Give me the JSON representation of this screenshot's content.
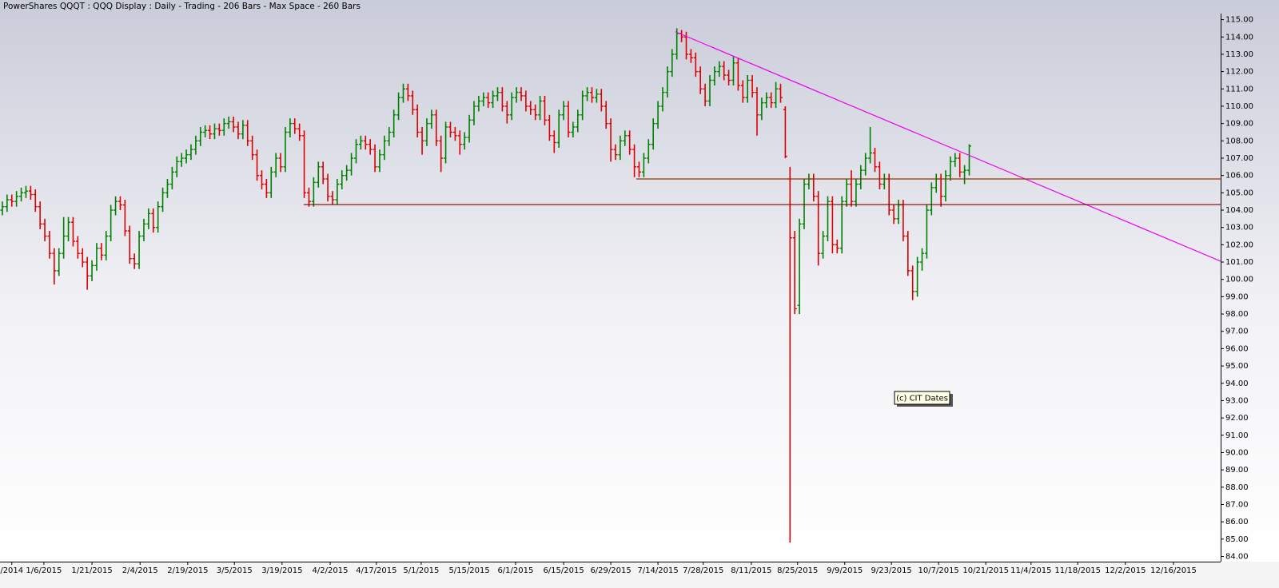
{
  "chart_data": {
    "type": "ohlc",
    "title": "PowerShares QQQT : QQQ Display :  Daily  - Trading - 206 Bars -  Max Space - 260 Bars",
    "up_color": "#008000",
    "down_color": "#dd0000",
    "xlim": [
      -0.5,
      258.3
    ],
    "ylim": [
      83.7,
      115.35
    ],
    "xticks": [
      {
        "value": 2,
        "label": "/2014"
      },
      {
        "value": 8.8,
        "label": "1/6/2015"
      },
      {
        "value": 19,
        "label": "1/21/2015"
      },
      {
        "value": 29.2,
        "label": "2/4/2015"
      },
      {
        "value": 39.3,
        "label": "2/19/2015"
      },
      {
        "value": 49.2,
        "label": "3/5/2015"
      },
      {
        "value": 59.3,
        "label": "3/19/2015"
      },
      {
        "value": 69.5,
        "label": "4/2/2015"
      },
      {
        "value": 79.3,
        "label": "4/17/2015"
      },
      {
        "value": 88.8,
        "label": "5/1/2015"
      },
      {
        "value": 99,
        "label": "5/15/2015"
      },
      {
        "value": 108.8,
        "label": "6/1/2015"
      },
      {
        "value": 119,
        "label": "6/15/2015"
      },
      {
        "value": 129,
        "label": "6/29/2015"
      },
      {
        "value": 139,
        "label": "7/14/2015"
      },
      {
        "value": 148.6,
        "label": "7/28/2015"
      },
      {
        "value": 158.8,
        "label": "8/11/2015"
      },
      {
        "value": 168.6,
        "label": "8/25/2015"
      },
      {
        "value": 178.6,
        "label": "9/9/2015"
      },
      {
        "value": 188.5,
        "label": "9/23/2015"
      },
      {
        "value": 198.5,
        "label": "10/7/2015"
      },
      {
        "value": 208.5,
        "label": "10/21/2015"
      },
      {
        "value": 218.1,
        "label": "11/4/2015"
      },
      {
        "value": 228,
        "label": "11/18/2015"
      },
      {
        "value": 238.1,
        "label": "12/2/2015"
      },
      {
        "value": 248.3,
        "label": "12/16/2015"
      }
    ],
    "yticks": [
      {
        "value": 84,
        "label": "84.00"
      },
      {
        "value": 85,
        "label": "85.00"
      },
      {
        "value": 86,
        "label": "86.00"
      },
      {
        "value": 87,
        "label": "87.00"
      },
      {
        "value": 88,
        "label": "88.00"
      },
      {
        "value": 89,
        "label": "89.00"
      },
      {
        "value": 90,
        "label": "90.00"
      },
      {
        "value": 91,
        "label": "91.00"
      },
      {
        "value": 92,
        "label": "92.00"
      },
      {
        "value": 93,
        "label": "93.00"
      },
      {
        "value": 94,
        "label": "94.00"
      },
      {
        "value": 95,
        "label": "95.00"
      },
      {
        "value": 96,
        "label": "96.00"
      },
      {
        "value": 97,
        "label": "97.00"
      },
      {
        "value": 98,
        "label": "98.00"
      },
      {
        "value": 99,
        "label": "99.00"
      },
      {
        "value": 100,
        "label": "100.00"
      },
      {
        "value": 101,
        "label": "101.00"
      },
      {
        "value": 102,
        "label": "102.00"
      },
      {
        "value": 103,
        "label": "103.00"
      },
      {
        "value": 104,
        "label": "104.00"
      },
      {
        "value": 105,
        "label": "105.00"
      },
      {
        "value": 106,
        "label": "106.00"
      },
      {
        "value": 107,
        "label": "107.00"
      },
      {
        "value": 108,
        "label": "108.00"
      },
      {
        "value": 109,
        "label": "109.00"
      },
      {
        "value": 110,
        "label": "110.00"
      },
      {
        "value": 111,
        "label": "111.00"
      },
      {
        "value": 112,
        "label": "112.00"
      },
      {
        "value": 113,
        "label": "113.00"
      },
      {
        "value": 114,
        "label": "114.00"
      },
      {
        "value": 115,
        "label": "115.00"
      }
    ],
    "open": [
      104.0,
      104.2,
      104.6,
      104.5,
      104.8,
      105.0,
      105.1,
      104.9,
      104.2,
      103.2,
      102.5,
      101.5,
      100.5,
      101.5,
      102.5,
      103.3,
      102.2,
      101.5,
      101.0,
      100.2,
      100.8,
      101.8,
      101.4,
      102.5,
      104.0,
      104.5,
      104.3,
      102.8,
      101.2,
      100.9,
      102.5,
      103.2,
      103.8,
      103.0,
      104.2,
      105.0,
      105.5,
      106.2,
      106.8,
      107.0,
      107.2,
      107.5,
      108.0,
      108.5,
      108.6,
      108.4,
      108.7,
      108.6,
      109.0,
      109.1,
      108.8,
      108.4,
      108.9,
      108.0,
      107.2,
      106.0,
      105.5,
      105.0,
      106.2,
      107.0,
      106.5,
      108.5,
      109.0,
      108.7,
      108.3,
      105.0,
      104.5,
      105.6,
      106.5,
      105.8,
      104.8,
      104.6,
      105.5,
      106.0,
      106.3,
      107.0,
      107.8,
      108.0,
      107.8,
      107.5,
      106.5,
      107.2,
      108.0,
      108.5,
      109.5,
      110.5,
      111.0,
      110.6,
      109.8,
      108.5,
      108.0,
      109.0,
      109.5,
      108.0,
      107.0,
      108.8,
      108.5,
      108.3,
      107.8,
      108.2,
      109.2,
      110.0,
      110.3,
      110.5,
      110.2,
      110.6,
      110.8,
      110.0,
      109.5,
      110.5,
      110.8,
      110.6,
      110.0,
      109.8,
      109.5,
      110.3,
      109.2,
      108.3,
      107.9,
      109.5,
      110.0,
      108.5,
      108.8,
      109.5,
      110.6,
      110.8,
      110.5,
      110.7,
      110.0,
      109.0,
      107.5,
      107.2,
      108.0,
      108.3,
      107.5,
      106.5,
      106.2,
      107.0,
      107.8,
      109.0,
      110.0,
      110.8,
      112.0,
      113.0,
      114.2,
      114.0,
      113.0,
      112.8,
      112.0,
      111.0,
      110.3,
      111.5,
      112.0,
      112.3,
      111.8,
      111.5,
      112.5,
      111.2,
      110.5,
      111.5,
      110.8,
      109.5,
      110.2,
      110.5,
      110.2,
      111.0,
      109.8,
      105.8,
      102.4,
      98.5,
      103.2,
      105.5,
      105.8,
      104.8,
      101.5,
      102.5,
      104.5,
      102.0,
      101.8,
      104.5,
      105.5,
      104.5,
      105.5,
      106.3,
      107.0,
      107.3,
      106.5,
      105.5,
      105.8,
      104.0,
      103.5,
      104.3,
      102.5,
      100.5,
      99.3,
      101.0,
      101.5,
      104.0,
      105.3,
      105.8,
      104.8,
      106.0,
      106.8,
      107.0,
      106.2,
      106.3
    ],
    "high": [
      104.5,
      104.9,
      104.9,
      105.1,
      105.3,
      105.4,
      105.4,
      105.2,
      104.5,
      103.5,
      102.8,
      101.8,
      101.8,
      103.6,
      103.6,
      103.6,
      102.5,
      101.8,
      101.3,
      101.1,
      102.1,
      102.1,
      102.8,
      104.3,
      104.8,
      104.8,
      104.6,
      103.1,
      101.5,
      102.8,
      103.5,
      104.1,
      104.1,
      104.5,
      105.3,
      105.8,
      106.5,
      107.1,
      107.3,
      107.5,
      107.8,
      108.3,
      108.8,
      108.9,
      108.9,
      109.0,
      109.0,
      109.3,
      109.4,
      109.4,
      109.1,
      109.2,
      109.2,
      108.3,
      107.5,
      106.3,
      105.8,
      106.5,
      107.3,
      107.3,
      108.8,
      109.3,
      109.3,
      109.0,
      108.6,
      105.3,
      105.9,
      106.8,
      106.8,
      106.1,
      105.1,
      105.8,
      106.3,
      106.6,
      107.3,
      108.1,
      108.3,
      108.3,
      108.1,
      107.8,
      107.5,
      108.3,
      108.8,
      109.8,
      110.8,
      111.3,
      111.3,
      110.9,
      110.1,
      108.8,
      109.3,
      109.8,
      109.8,
      108.3,
      109.1,
      109.1,
      108.8,
      108.6,
      108.5,
      109.5,
      110.3,
      110.6,
      110.8,
      110.8,
      110.9,
      111.1,
      111.1,
      110.3,
      110.8,
      111.1,
      111.1,
      110.9,
      110.3,
      110.1,
      110.6,
      110.6,
      109.5,
      108.6,
      109.8,
      110.3,
      110.3,
      109.1,
      109.8,
      110.9,
      111.1,
      111.1,
      111.0,
      111.0,
      110.3,
      109.3,
      107.8,
      108.3,
      108.6,
      108.6,
      107.8,
      106.8,
      107.3,
      108.1,
      109.3,
      110.3,
      111.1,
      112.3,
      113.3,
      114.5,
      114.4,
      114.3,
      113.3,
      113.1,
      112.3,
      111.3,
      111.8,
      112.3,
      112.6,
      112.6,
      112.1,
      112.9,
      112.8,
      111.5,
      111.8,
      111.8,
      111.1,
      110.5,
      110.8,
      110.8,
      111.4,
      111.3,
      110.0,
      106.5,
      102.8,
      103.5,
      105.8,
      106.1,
      106.1,
      105.1,
      102.8,
      104.8,
      104.8,
      102.3,
      104.8,
      105.8,
      106.3,
      105.8,
      106.6,
      107.3,
      108.8,
      107.6,
      106.8,
      106.1,
      106.1,
      104.3,
      104.6,
      104.6,
      102.8,
      100.8,
      101.3,
      101.8,
      104.3,
      105.6,
      106.1,
      106.1,
      106.3,
      107.1,
      107.3,
      107.3,
      106.6,
      107.8
    ],
    "low": [
      103.7,
      103.9,
      104.2,
      104.2,
      104.5,
      104.7,
      104.6,
      103.9,
      102.9,
      102.2,
      101.2,
      99.7,
      100.2,
      101.2,
      102.2,
      101.9,
      101.2,
      100.7,
      99.4,
      99.9,
      100.5,
      101.1,
      101.1,
      102.2,
      103.7,
      104.0,
      102.5,
      100.9,
      100.6,
      100.6,
      102.2,
      102.9,
      102.7,
      102.7,
      103.9,
      104.7,
      105.2,
      105.9,
      106.5,
      106.7,
      106.9,
      107.2,
      107.7,
      108.2,
      108.1,
      108.1,
      108.3,
      108.3,
      108.7,
      108.5,
      108.1,
      108.1,
      107.7,
      106.9,
      105.7,
      105.2,
      104.7,
      104.7,
      105.9,
      106.2,
      106.2,
      108.2,
      108.4,
      108.0,
      104.7,
      104.2,
      104.2,
      105.3,
      105.5,
      104.5,
      104.3,
      104.3,
      105.2,
      105.7,
      106.0,
      106.7,
      107.5,
      107.5,
      107.2,
      106.2,
      106.2,
      106.9,
      107.7,
      108.2,
      109.2,
      110.2,
      110.3,
      109.5,
      108.2,
      107.2,
      107.7,
      108.7,
      107.7,
      106.2,
      106.7,
      108.2,
      108.0,
      107.2,
      107.5,
      107.9,
      108.9,
      109.7,
      110.0,
      109.9,
      109.9,
      110.3,
      109.7,
      109.0,
      109.2,
      110.2,
      110.3,
      109.7,
      109.5,
      109.2,
      109.2,
      108.9,
      108.0,
      107.3,
      107.6,
      109.2,
      108.2,
      108.2,
      108.5,
      109.2,
      110.3,
      110.2,
      110.2,
      109.7,
      108.7,
      106.8,
      106.9,
      106.9,
      107.7,
      107.2,
      105.9,
      105.9,
      105.9,
      106.7,
      107.5,
      108.7,
      109.7,
      110.5,
      111.7,
      112.7,
      113.7,
      112.7,
      112.5,
      111.7,
      110.7,
      110.0,
      110.0,
      111.2,
      111.7,
      111.5,
      111.2,
      111.2,
      110.9,
      110.2,
      110.2,
      110.5,
      108.3,
      109.2,
      109.9,
      109.9,
      109.9,
      110.2,
      107.0,
      84.8,
      98.0,
      98.0,
      102.9,
      105.2,
      104.5,
      100.8,
      101.2,
      102.2,
      101.5,
      101.5,
      101.5,
      104.2,
      104.2,
      104.2,
      105.2,
      106.0,
      106.7,
      106.2,
      105.2,
      105.2,
      103.7,
      103.2,
      103.2,
      102.2,
      100.2,
      98.8,
      99.0,
      100.5,
      101.2,
      103.7,
      105.0,
      104.2,
      104.5,
      105.7,
      106.5,
      105.9,
      105.5,
      106.0
    ],
    "close": [
      104.2,
      104.6,
      104.5,
      104.8,
      105.0,
      105.1,
      104.9,
      104.2,
      103.2,
      102.5,
      101.5,
      100.5,
      101.5,
      102.5,
      103.3,
      102.2,
      101.5,
      101.0,
      100.2,
      100.8,
      101.8,
      101.4,
      102.5,
      104.0,
      104.5,
      104.3,
      102.8,
      101.2,
      100.9,
      102.5,
      103.2,
      103.8,
      103.0,
      104.2,
      105.0,
      105.5,
      106.2,
      106.8,
      107.0,
      107.2,
      107.5,
      108.0,
      108.5,
      108.6,
      108.4,
      108.7,
      108.6,
      109.0,
      109.1,
      108.8,
      108.4,
      108.9,
      108.0,
      107.2,
      106.0,
      105.5,
      105.0,
      106.2,
      107.0,
      106.5,
      108.5,
      109.0,
      108.7,
      108.3,
      105.0,
      104.5,
      105.6,
      106.5,
      105.8,
      104.8,
      104.6,
      105.5,
      106.0,
      106.3,
      107.0,
      107.8,
      108.0,
      107.8,
      107.5,
      106.5,
      107.2,
      108.0,
      108.5,
      109.5,
      110.5,
      111.0,
      110.6,
      109.8,
      108.5,
      108.0,
      109.0,
      109.5,
      108.0,
      107.0,
      108.8,
      108.5,
      108.3,
      107.8,
      108.2,
      109.2,
      110.0,
      110.3,
      110.5,
      110.2,
      110.6,
      110.8,
      110.0,
      109.5,
      110.5,
      110.8,
      110.6,
      110.0,
      109.8,
      109.5,
      110.3,
      109.2,
      108.3,
      107.9,
      109.5,
      110.0,
      108.5,
      108.8,
      109.5,
      110.6,
      110.8,
      110.5,
      110.7,
      110.0,
      109.0,
      107.5,
      107.2,
      108.0,
      108.3,
      107.5,
      106.5,
      106.2,
      107.0,
      107.8,
      109.0,
      110.0,
      110.8,
      112.0,
      113.0,
      114.2,
      114.0,
      113.0,
      112.8,
      112.0,
      111.0,
      110.3,
      111.5,
      112.0,
      112.3,
      111.8,
      111.5,
      112.5,
      111.2,
      110.5,
      111.5,
      110.8,
      109.5,
      110.2,
      110.5,
      110.2,
      111.0,
      110.5,
      107.1,
      102.4,
      98.3,
      103.2,
      105.5,
      105.8,
      104.8,
      101.5,
      102.5,
      104.5,
      102.0,
      101.8,
      104.5,
      105.5,
      104.5,
      105.5,
      106.3,
      107.0,
      107.3,
      106.5,
      105.5,
      105.8,
      104.0,
      103.5,
      104.3,
      102.5,
      100.5,
      99.3,
      101.0,
      101.5,
      104.0,
      105.3,
      105.8,
      104.8,
      106.0,
      106.8,
      107.0,
      106.2,
      106.3,
      107.7
    ],
    "lines": [
      {
        "color": "#ee00ee",
        "x": [
          142.7,
          258.3
        ],
        "y": [
          114.3,
          101.05
        ]
      },
      {
        "color": "#993300",
        "x": [
          134.4,
          258.3
        ],
        "y": [
          105.8,
          105.8
        ]
      },
      {
        "color": "#800000",
        "x": [
          63.9,
          258.3
        ],
        "y": [
          104.32,
          104.32
        ]
      }
    ],
    "annotation": "(c) CIT Dates"
  }
}
